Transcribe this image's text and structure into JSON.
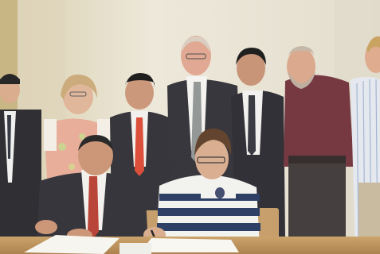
{
  "scene": {
    "type": "photograph",
    "subject": "signing-ceremony",
    "colors": {
      "wall": "#e8e2d0",
      "wall_shadow": "#d9d2bf",
      "left_column": "#c9b98e",
      "table": "#c79a5a",
      "paper": "#f6f5f0",
      "dark_suit": "#2b2a2e",
      "red_tie": "#c0392b",
      "stripe_navy": "#22355e",
      "stripe_white": "#f2f2ee",
      "maroon_shirt": "#6e2b35",
      "skin": "#d8a98a"
    },
    "people_count": 10
  }
}
